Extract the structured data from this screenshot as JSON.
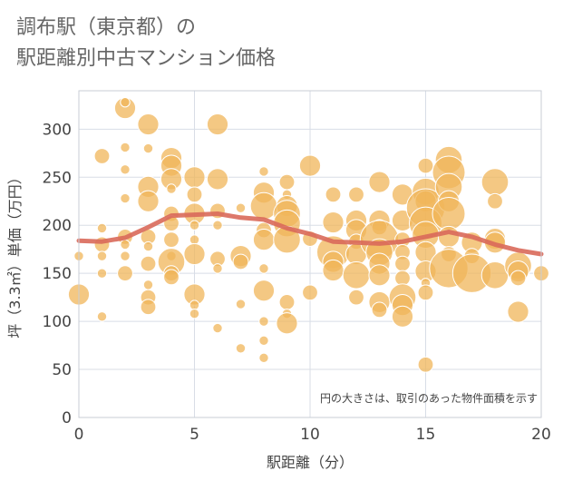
{
  "chart_data": {
    "type": "scatter",
    "title": "調布駅（東京都）の\n駅距離別中古マンション価格",
    "xlabel": "駅距離（分）",
    "ylabel": "坪（3.3㎡）単価（万円）",
    "xlim": [
      0,
      20
    ],
    "ylim": [
      0,
      340
    ],
    "x_ticks": [
      0,
      5,
      10,
      15,
      20
    ],
    "y_ticks": [
      0,
      50,
      100,
      150,
      200,
      250,
      300
    ],
    "grid": true,
    "annotation": "円の大きさは、取引のあった物件面積を示す",
    "colors": {
      "bubble": "#f0b55a",
      "trend": "#d9695a",
      "grid": "#d8dde6",
      "plot_border": "#c9ced6"
    },
    "points": [
      {
        "x": 0,
        "y": 128,
        "s": 3
      },
      {
        "x": 0,
        "y": 168,
        "s": 1
      },
      {
        "x": 1,
        "y": 272,
        "s": 2
      },
      {
        "x": 1,
        "y": 180,
        "s": 2
      },
      {
        "x": 1,
        "y": 168,
        "s": 1
      },
      {
        "x": 1,
        "y": 150,
        "s": 1
      },
      {
        "x": 1,
        "y": 105,
        "s": 1
      },
      {
        "x": 1,
        "y": 197,
        "s": 1
      },
      {
        "x": 2,
        "y": 322,
        "s": 3
      },
      {
        "x": 2,
        "y": 328,
        "s": 1
      },
      {
        "x": 2,
        "y": 281,
        "s": 1
      },
      {
        "x": 2,
        "y": 258,
        "s": 1
      },
      {
        "x": 2,
        "y": 228,
        "s": 1
      },
      {
        "x": 2,
        "y": 188,
        "s": 2
      },
      {
        "x": 2,
        "y": 180,
        "s": 1
      },
      {
        "x": 2,
        "y": 168,
        "s": 1
      },
      {
        "x": 2,
        "y": 150,
        "s": 2
      },
      {
        "x": 3,
        "y": 305,
        "s": 3
      },
      {
        "x": 3,
        "y": 280,
        "s": 1
      },
      {
        "x": 3,
        "y": 240,
        "s": 3
      },
      {
        "x": 3,
        "y": 225,
        "s": 3
      },
      {
        "x": 3,
        "y": 188,
        "s": 2
      },
      {
        "x": 3,
        "y": 178,
        "s": 1
      },
      {
        "x": 3,
        "y": 160,
        "s": 2
      },
      {
        "x": 3,
        "y": 138,
        "s": 1
      },
      {
        "x": 3,
        "y": 125,
        "s": 2
      },
      {
        "x": 3,
        "y": 115,
        "s": 2
      },
      {
        "x": 4,
        "y": 270,
        "s": 3
      },
      {
        "x": 4,
        "y": 262,
        "s": 3
      },
      {
        "x": 4,
        "y": 248,
        "s": 3
      },
      {
        "x": 4,
        "y": 238,
        "s": 1
      },
      {
        "x": 4,
        "y": 212,
        "s": 2
      },
      {
        "x": 4,
        "y": 202,
        "s": 2
      },
      {
        "x": 4,
        "y": 185,
        "s": 2
      },
      {
        "x": 4,
        "y": 168,
        "s": 1
      },
      {
        "x": 4,
        "y": 162,
        "s": 4
      },
      {
        "x": 4,
        "y": 150,
        "s": 2
      },
      {
        "x": 4,
        "y": 146,
        "s": 2
      },
      {
        "x": 5,
        "y": 250,
        "s": 3
      },
      {
        "x": 5,
        "y": 232,
        "s": 2
      },
      {
        "x": 5,
        "y": 212,
        "s": 3
      },
      {
        "x": 5,
        "y": 200,
        "s": 1
      },
      {
        "x": 5,
        "y": 185,
        "s": 1
      },
      {
        "x": 5,
        "y": 170,
        "s": 3
      },
      {
        "x": 5,
        "y": 128,
        "s": 3
      },
      {
        "x": 5,
        "y": 117,
        "s": 1
      },
      {
        "x": 5,
        "y": 108,
        "s": 1
      },
      {
        "x": 6,
        "y": 305,
        "s": 3
      },
      {
        "x": 6,
        "y": 248,
        "s": 3
      },
      {
        "x": 6,
        "y": 215,
        "s": 2
      },
      {
        "x": 6,
        "y": 200,
        "s": 1
      },
      {
        "x": 6,
        "y": 165,
        "s": 2
      },
      {
        "x": 6,
        "y": 155,
        "s": 1
      },
      {
        "x": 6,
        "y": 93,
        "s": 1
      },
      {
        "x": 7,
        "y": 218,
        "s": 1
      },
      {
        "x": 7,
        "y": 168,
        "s": 3
      },
      {
        "x": 7,
        "y": 162,
        "s": 2
      },
      {
        "x": 7,
        "y": 118,
        "s": 1
      },
      {
        "x": 7,
        "y": 72,
        "s": 1
      },
      {
        "x": 8,
        "y": 256,
        "s": 1
      },
      {
        "x": 8,
        "y": 234,
        "s": 3
      },
      {
        "x": 8,
        "y": 220,
        "s": 4
      },
      {
        "x": 8,
        "y": 195,
        "s": 2
      },
      {
        "x": 8,
        "y": 185,
        "s": 3
      },
      {
        "x": 8,
        "y": 155,
        "s": 1
      },
      {
        "x": 8,
        "y": 132,
        "s": 3
      },
      {
        "x": 8,
        "y": 100,
        "s": 1
      },
      {
        "x": 8,
        "y": 80,
        "s": 1
      },
      {
        "x": 8,
        "y": 62,
        "s": 1
      },
      {
        "x": 9,
        "y": 245,
        "s": 2
      },
      {
        "x": 9,
        "y": 232,
        "s": 1
      },
      {
        "x": 9,
        "y": 220,
        "s": 3
      },
      {
        "x": 9,
        "y": 212,
        "s": 4
      },
      {
        "x": 9,
        "y": 202,
        "s": 4
      },
      {
        "x": 9,
        "y": 185,
        "s": 4
      },
      {
        "x": 9,
        "y": 120,
        "s": 2
      },
      {
        "x": 9,
        "y": 108,
        "s": 1
      },
      {
        "x": 9,
        "y": 98,
        "s": 3
      },
      {
        "x": 10,
        "y": 262,
        "s": 3
      },
      {
        "x": 10,
        "y": 186,
        "s": 2
      },
      {
        "x": 10,
        "y": 130,
        "s": 2
      },
      {
        "x": 11,
        "y": 232,
        "s": 2
      },
      {
        "x": 11,
        "y": 203,
        "s": 3
      },
      {
        "x": 11,
        "y": 172,
        "s": 5
      },
      {
        "x": 11,
        "y": 162,
        "s": 3
      },
      {
        "x": 11,
        "y": 153,
        "s": 3
      },
      {
        "x": 12,
        "y": 232,
        "s": 2
      },
      {
        "x": 12,
        "y": 205,
        "s": 3
      },
      {
        "x": 12,
        "y": 195,
        "s": 3
      },
      {
        "x": 12,
        "y": 183,
        "s": 2
      },
      {
        "x": 12,
        "y": 170,
        "s": 3
      },
      {
        "x": 12,
        "y": 148,
        "s": 4
      },
      {
        "x": 12,
        "y": 125,
        "s": 2
      },
      {
        "x": 13,
        "y": 245,
        "s": 3
      },
      {
        "x": 13,
        "y": 205,
        "s": 3
      },
      {
        "x": 13,
        "y": 198,
        "s": 2
      },
      {
        "x": 13,
        "y": 185,
        "s": 6
      },
      {
        "x": 13,
        "y": 172,
        "s": 4
      },
      {
        "x": 13,
        "y": 160,
        "s": 3
      },
      {
        "x": 13,
        "y": 148,
        "s": 3
      },
      {
        "x": 13,
        "y": 120,
        "s": 3
      },
      {
        "x": 13,
        "y": 112,
        "s": 2
      },
      {
        "x": 14,
        "y": 232,
        "s": 3
      },
      {
        "x": 14,
        "y": 205,
        "s": 3
      },
      {
        "x": 14,
        "y": 185,
        "s": 2
      },
      {
        "x": 14,
        "y": 172,
        "s": 2
      },
      {
        "x": 14,
        "y": 160,
        "s": 2
      },
      {
        "x": 14,
        "y": 145,
        "s": 2
      },
      {
        "x": 14,
        "y": 125,
        "s": 4
      },
      {
        "x": 14,
        "y": 117,
        "s": 3
      },
      {
        "x": 14,
        "y": 105,
        "s": 3
      },
      {
        "x": 15,
        "y": 262,
        "s": 2
      },
      {
        "x": 15,
        "y": 235,
        "s": 4
      },
      {
        "x": 15,
        "y": 225,
        "s": 3
      },
      {
        "x": 15,
        "y": 218,
        "s": 6
      },
      {
        "x": 15,
        "y": 202,
        "s": 5
      },
      {
        "x": 15,
        "y": 190,
        "s": 4
      },
      {
        "x": 15,
        "y": 172,
        "s": 3
      },
      {
        "x": 15,
        "y": 152,
        "s": 3
      },
      {
        "x": 15,
        "y": 140,
        "s": 1
      },
      {
        "x": 15,
        "y": 130,
        "s": 2
      },
      {
        "x": 15,
        "y": 55,
        "s": 2
      },
      {
        "x": 16,
        "y": 268,
        "s": 4
      },
      {
        "x": 16,
        "y": 255,
        "s": 5
      },
      {
        "x": 16,
        "y": 240,
        "s": 4
      },
      {
        "x": 16,
        "y": 225,
        "s": 3
      },
      {
        "x": 16,
        "y": 212,
        "s": 5
      },
      {
        "x": 16,
        "y": 188,
        "s": 3
      },
      {
        "x": 16,
        "y": 170,
        "s": 2
      },
      {
        "x": 16,
        "y": 155,
        "s": 6
      },
      {
        "x": 17,
        "y": 182,
        "s": 3
      },
      {
        "x": 17,
        "y": 168,
        "s": 2
      },
      {
        "x": 17,
        "y": 150,
        "s": 6
      },
      {
        "x": 18,
        "y": 245,
        "s": 4
      },
      {
        "x": 18,
        "y": 225,
        "s": 2
      },
      {
        "x": 18,
        "y": 186,
        "s": 3
      },
      {
        "x": 18,
        "y": 182,
        "s": 3
      },
      {
        "x": 18,
        "y": 148,
        "s": 4
      },
      {
        "x": 19,
        "y": 158,
        "s": 4
      },
      {
        "x": 19,
        "y": 152,
        "s": 3
      },
      {
        "x": 19,
        "y": 145,
        "s": 2
      },
      {
        "x": 19,
        "y": 110,
        "s": 3
      },
      {
        "x": 20,
        "y": 150,
        "s": 2
      }
    ],
    "trend": [
      {
        "x": 0,
        "y": 184
      },
      {
        "x": 1,
        "y": 183
      },
      {
        "x": 2,
        "y": 187
      },
      {
        "x": 3,
        "y": 198
      },
      {
        "x": 4,
        "y": 210
      },
      {
        "x": 5,
        "y": 211
      },
      {
        "x": 6,
        "y": 212
      },
      {
        "x": 7,
        "y": 208
      },
      {
        "x": 8,
        "y": 206
      },
      {
        "x": 9,
        "y": 197
      },
      {
        "x": 10,
        "y": 191
      },
      {
        "x": 11,
        "y": 183
      },
      {
        "x": 12,
        "y": 182
      },
      {
        "x": 13,
        "y": 181
      },
      {
        "x": 14,
        "y": 183
      },
      {
        "x": 15,
        "y": 188
      },
      {
        "x": 16,
        "y": 193
      },
      {
        "x": 17,
        "y": 188
      },
      {
        "x": 18,
        "y": 180
      },
      {
        "x": 19,
        "y": 174
      },
      {
        "x": 20,
        "y": 170
      }
    ]
  }
}
